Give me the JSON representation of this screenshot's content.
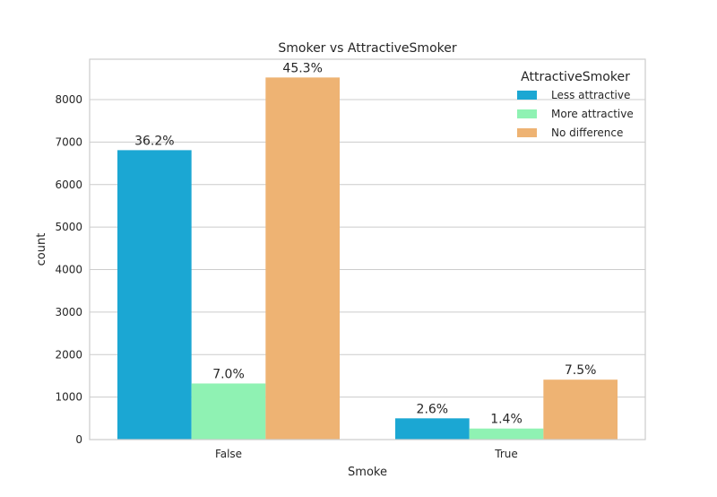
{
  "chart_data": {
    "type": "bar",
    "title": "Smoker vs AttractiveSmoker",
    "xlabel": "Smoke",
    "ylabel": "count",
    "categories": [
      "False",
      "True"
    ],
    "ylim": [
      0,
      8950
    ],
    "yticks": [
      0,
      1000,
      2000,
      3000,
      4000,
      5000,
      6000,
      7000,
      8000
    ],
    "grid": true,
    "legend": {
      "title": "AttractiveSmoker",
      "placement": "top-right"
    },
    "series": [
      {
        "name": "Less attractive",
        "color": "#1ba7d3",
        "values": [
          6810,
          500
        ],
        "labels": [
          "36.2%",
          "2.6%"
        ]
      },
      {
        "name": "More attractive",
        "color": "#8ff2b3",
        "values": [
          1320,
          260
        ],
        "labels": [
          "7.0%",
          "1.4%"
        ]
      },
      {
        "name": "No difference",
        "color": "#eeb373",
        "values": [
          8520,
          1410
        ],
        "labels": [
          "45.3%",
          "7.5%"
        ]
      }
    ]
  }
}
